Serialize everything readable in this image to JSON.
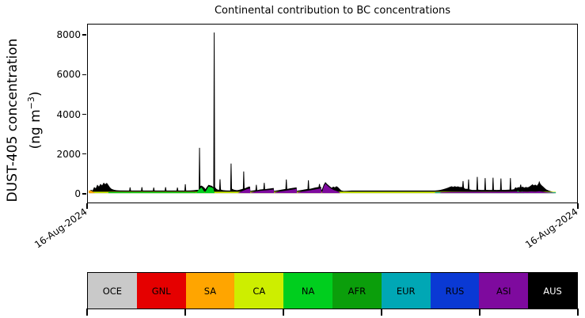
{
  "figure": {
    "title": "Continental contribution to BC concentrations"
  },
  "y_axis": {
    "label_line1": "DUST-405 concentration",
    "label_line2_pre": "(ng m",
    "label_line2_sup": "−3",
    "label_line2_post": ")",
    "tick_labels": [
      "0",
      "2000",
      "4000",
      "6000",
      "8000"
    ],
    "tick_values": [
      0,
      2000,
      4000,
      6000,
      8000
    ]
  },
  "x_axis": {
    "left_label": "16-Aug-2024",
    "right_label": "16-Aug-2024"
  },
  "legend": {
    "entries": [
      {
        "label": "OCE",
        "color": "#c9c9c9",
        "text_color": "#000000"
      },
      {
        "label": "GNL",
        "color": "#e50000",
        "text_color": "#000000"
      },
      {
        "label": "SA",
        "color": "#ffa500",
        "text_color": "#000000"
      },
      {
        "label": "CA",
        "color": "#cdee00",
        "text_color": "#000000"
      },
      {
        "label": "NA",
        "color": "#00ce1e",
        "text_color": "#000000"
      },
      {
        "label": "AFR",
        "color": "#0b9e0b",
        "text_color": "#000000"
      },
      {
        "label": "EUR",
        "color": "#00a7b5",
        "text_color": "#000000"
      },
      {
        "label": "RUS",
        "color": "#0a39d4",
        "text_color": "#000000"
      },
      {
        "label": "ASI",
        "color": "#7e0a9e",
        "text_color": "#000000"
      },
      {
        "label": "AUS",
        "color": "#000000",
        "text_color": "#ffffff"
      }
    ]
  },
  "chart_data": {
    "type": "area",
    "subtype": "stacked time-series of continental contributions",
    "title": "Continental contribution to BC concentrations",
    "xlabel": "",
    "ylabel": "DUST-405 concentration (ng m−3)",
    "ylim": [
      -480,
      8560
    ],
    "yticks": [
      0,
      2000,
      4000,
      6000,
      8000
    ],
    "xtick_labels": [
      "16-Aug-2024",
      "16-Aug-2024"
    ],
    "grid": false,
    "legend_position": "bottom horizontal colorbar with ticks every 2 categories",
    "categories": [
      "OCE",
      "GNL",
      "SA",
      "CA",
      "NA",
      "AFR",
      "EUR",
      "RUS",
      "ASI",
      "AUS"
    ],
    "category_colors": [
      "#c9c9c9",
      "#e50000",
      "#ffa500",
      "#cdee00",
      "#00ce1e",
      "#0b9e0b",
      "#00a7b5",
      "#0a39d4",
      "#7e0a9e",
      "#000000"
    ],
    "units": "ng m-3; x coordinates are axis pixels 0-620 spanning the date range; data ends at x=593 leaving blank axis to 620",
    "peak_value": 8150,
    "secondary_peaks": [
      2300,
      1500,
      1100
    ],
    "total_envelope_color": "#000000",
    "total_envelope": [
      [
        2,
        0
      ],
      [
        2,
        90
      ],
      [
        4,
        170
      ],
      [
        6,
        130
      ],
      [
        8,
        310
      ],
      [
        10,
        240
      ],
      [
        12,
        430
      ],
      [
        14,
        330
      ],
      [
        16,
        470
      ],
      [
        18,
        390
      ],
      [
        20,
        530
      ],
      [
        22,
        450
      ],
      [
        24,
        520
      ],
      [
        26,
        410
      ],
      [
        28,
        290
      ],
      [
        30,
        215
      ],
      [
        33,
        170
      ],
      [
        36,
        145
      ],
      [
        40,
        135
      ],
      [
        52.4,
        130
      ],
      [
        53,
        290
      ],
      [
        54,
        290
      ],
      [
        54.6,
        130
      ],
      [
        67.4,
        130
      ],
      [
        68,
        300
      ],
      [
        69,
        300
      ],
      [
        69.6,
        130
      ],
      [
        82.4,
        130
      ],
      [
        83,
        280
      ],
      [
        84,
        280
      ],
      [
        84.6,
        130
      ],
      [
        97.4,
        130
      ],
      [
        98,
        300
      ],
      [
        99,
        300
      ],
      [
        99.6,
        130
      ],
      [
        112.4,
        130
      ],
      [
        113,
        280
      ],
      [
        114,
        280
      ],
      [
        114.6,
        130
      ],
      [
        122.4,
        130
      ],
      [
        123,
        450
      ],
      [
        124,
        450
      ],
      [
        124.6,
        130
      ],
      [
        130,
        135
      ],
      [
        134,
        145
      ],
      [
        137,
        160
      ],
      [
        140.5,
        170
      ],
      [
        141,
        2300
      ],
      [
        142,
        2300
      ],
      [
        142.6,
        360
      ],
      [
        144,
        380
      ],
      [
        146,
        330
      ],
      [
        148,
        260
      ],
      [
        149,
        200
      ],
      [
        151,
        320
      ],
      [
        153,
        420
      ],
      [
        155,
        390
      ],
      [
        157,
        370
      ],
      [
        159,
        300
      ],
      [
        159.6,
        8150
      ],
      [
        160.6,
        8150
      ],
      [
        161.2,
        300
      ],
      [
        163,
        210
      ],
      [
        165,
        170
      ],
      [
        166.4,
        170
      ],
      [
        167,
        700
      ],
      [
        168,
        700
      ],
      [
        168.6,
        180
      ],
      [
        171,
        150
      ],
      [
        175,
        135
      ],
      [
        180.4,
        130
      ],
      [
        181,
        1500
      ],
      [
        182,
        1500
      ],
      [
        182.6,
        220
      ],
      [
        185,
        175
      ],
      [
        188,
        150
      ],
      [
        190,
        150
      ],
      [
        194,
        190
      ],
      [
        196.5,
        220
      ],
      [
        197,
        1100
      ],
      [
        198,
        1100
      ],
      [
        198.6,
        240
      ],
      [
        201,
        280
      ],
      [
        204,
        330
      ],
      [
        205.5,
        330
      ],
      [
        206,
        110
      ],
      [
        208,
        125
      ],
      [
        212.4,
        150
      ],
      [
        213,
        420
      ],
      [
        214,
        420
      ],
      [
        214.6,
        150
      ],
      [
        218,
        180
      ],
      [
        222.4,
        200
      ],
      [
        223,
        520
      ],
      [
        224,
        520
      ],
      [
        224.6,
        200
      ],
      [
        228,
        220
      ],
      [
        232,
        240
      ],
      [
        235.5,
        260
      ],
      [
        236,
        110
      ],
      [
        238,
        125
      ],
      [
        242,
        150
      ],
      [
        246,
        180
      ],
      [
        250.4,
        210
      ],
      [
        251,
        690
      ],
      [
        252,
        690
      ],
      [
        252.6,
        210
      ],
      [
        256,
        240
      ],
      [
        260,
        265
      ],
      [
        264.5,
        290
      ],
      [
        265,
        110
      ],
      [
        266,
        125
      ],
      [
        270,
        150
      ],
      [
        274,
        180
      ],
      [
        278.4,
        210
      ],
      [
        279,
        650
      ],
      [
        280,
        650
      ],
      [
        280.6,
        210
      ],
      [
        284,
        240
      ],
      [
        288,
        280
      ],
      [
        292.4,
        310
      ],
      [
        293,
        460
      ],
      [
        294,
        460
      ],
      [
        294.6,
        310
      ],
      [
        295.5,
        320
      ],
      [
        296,
        150
      ],
      [
        297,
        220
      ],
      [
        299,
        430
      ],
      [
        301,
        560
      ],
      [
        303,
        470
      ],
      [
        305,
        400
      ],
      [
        307,
        330
      ],
      [
        309,
        270
      ],
      [
        311,
        330
      ],
      [
        313,
        290
      ],
      [
        315,
        350
      ],
      [
        317,
        300
      ],
      [
        319,
        220
      ],
      [
        321,
        140
      ],
      [
        324,
        110
      ],
      [
        328,
        115
      ],
      [
        334,
        130
      ],
      [
        440,
        130
      ],
      [
        444,
        145
      ],
      [
        447,
        165
      ],
      [
        450,
        195
      ],
      [
        453,
        230
      ],
      [
        456,
        270
      ],
      [
        459,
        320
      ],
      [
        461,
        345
      ],
      [
        463,
        315
      ],
      [
        465,
        350
      ],
      [
        467,
        320
      ],
      [
        469,
        340
      ],
      [
        471,
        310
      ],
      [
        474.4,
        310
      ],
      [
        475,
        610
      ],
      [
        476,
        610
      ],
      [
        476.6,
        280
      ],
      [
        478,
        220
      ],
      [
        481.4,
        215
      ],
      [
        482,
        690
      ],
      [
        483,
        690
      ],
      [
        483.6,
        190
      ],
      [
        487,
        160
      ],
      [
        492.4,
        160
      ],
      [
        493,
        820
      ],
      [
        494,
        820
      ],
      [
        494.6,
        175
      ],
      [
        498,
        160
      ],
      [
        502.4,
        160
      ],
      [
        503,
        760
      ],
      [
        504,
        760
      ],
      [
        504.6,
        165
      ],
      [
        508,
        160
      ],
      [
        512.4,
        160
      ],
      [
        513,
        780
      ],
      [
        514,
        780
      ],
      [
        514.6,
        165
      ],
      [
        518,
        160
      ],
      [
        522.4,
        165
      ],
      [
        523,
        740
      ],
      [
        524,
        740
      ],
      [
        524.6,
        165
      ],
      [
        529,
        165
      ],
      [
        534.4,
        175
      ],
      [
        535,
        760
      ],
      [
        536,
        760
      ],
      [
        536.6,
        175
      ],
      [
        540,
        195
      ],
      [
        542,
        300
      ],
      [
        543.5,
        255
      ],
      [
        545,
        295
      ],
      [
        547.4,
        295
      ],
      [
        548,
        430
      ],
      [
        549,
        430
      ],
      [
        549.6,
        295
      ],
      [
        551,
        330
      ],
      [
        553,
        275
      ],
      [
        555,
        310
      ],
      [
        557,
        290
      ],
      [
        559,
        315
      ],
      [
        562,
        400
      ],
      [
        563.5,
        450
      ],
      [
        565,
        390
      ],
      [
        567,
        430
      ],
      [
        569,
        375
      ],
      [
        571,
        480
      ],
      [
        572,
        620
      ],
      [
        573.5,
        470
      ],
      [
        575,
        400
      ],
      [
        577,
        330
      ],
      [
        579,
        255
      ],
      [
        581,
        185
      ],
      [
        584,
        130
      ],
      [
        587,
        90
      ],
      [
        590,
        60
      ],
      [
        592,
        35
      ],
      [
        593,
        20
      ],
      [
        593,
        0
      ]
    ],
    "fills": [
      {
        "name": "CA",
        "color": "#cdee00",
        "points": [
          [
            2,
            0
          ],
          [
            2,
            70
          ],
          [
            593,
            70
          ],
          [
            593,
            0
          ]
        ]
      },
      {
        "name": "EUR",
        "color": "#00a7b5",
        "points": [
          [
            440,
            0
          ],
          [
            440,
            38
          ],
          [
            593,
            38
          ],
          [
            593,
            0
          ]
        ]
      },
      {
        "name": "NA",
        "color": "#00ce1e",
        "points": [
          [
            26,
            0
          ],
          [
            26,
            48
          ],
          [
            137,
            48
          ],
          [
            137,
            0
          ]
        ]
      },
      {
        "name": "NA",
        "color": "#00ce1e",
        "points": [
          [
            137,
            0
          ],
          [
            140,
            150
          ],
          [
            144,
            290
          ],
          [
            148.2,
            30
          ],
          [
            150,
            130
          ],
          [
            153,
            330
          ],
          [
            156,
            300
          ],
          [
            159,
            250
          ],
          [
            160.5,
            0
          ]
        ]
      },
      {
        "name": "NA",
        "color": "#00ce1e",
        "points": [
          [
            542,
            0
          ],
          [
            545,
            130
          ],
          [
            548.5,
            0
          ],
          [
            550,
            100
          ],
          [
            553,
            0
          ]
        ]
      },
      {
        "name": "SA",
        "color": "#ffa500",
        "points": [
          [
            1,
            0
          ],
          [
            1,
            140
          ],
          [
            5,
            110
          ],
          [
            9,
            0
          ]
        ]
      },
      {
        "name": "ASI",
        "color": "#7e0a9e",
        "points": [
          [
            190,
            0
          ],
          [
            196,
            110
          ],
          [
            201,
            190
          ],
          [
            205.5,
            235
          ],
          [
            205.9,
            0
          ],
          [
            207,
            30
          ],
          [
            213,
            80
          ],
          [
            219,
            120
          ],
          [
            228,
            150
          ],
          [
            235.5,
            185
          ],
          [
            235.9,
            0
          ],
          [
            237,
            30
          ],
          [
            243,
            80
          ],
          [
            250,
            120
          ],
          [
            258,
            170
          ],
          [
            264.5,
            215
          ],
          [
            264.9,
            0
          ],
          [
            266,
            30
          ],
          [
            272,
            80
          ],
          [
            280,
            130
          ],
          [
            287,
            180
          ],
          [
            295.5,
            240
          ],
          [
            295.9,
            0
          ],
          [
            297,
            60
          ],
          [
            299,
            330
          ],
          [
            301,
            480
          ],
          [
            303,
            400
          ],
          [
            306,
            290
          ],
          [
            309,
            210
          ],
          [
            312,
            150
          ],
          [
            315,
            110
          ],
          [
            318,
            60
          ],
          [
            320,
            0
          ]
        ]
      },
      {
        "name": "ASI",
        "color": "#7e0a9e",
        "points": [
          [
            446,
            0
          ],
          [
            448,
            40
          ],
          [
            460,
            55
          ],
          [
            475,
            60
          ],
          [
            490,
            65
          ],
          [
            505,
            60
          ],
          [
            520,
            65
          ],
          [
            535,
            70
          ],
          [
            543,
            80
          ],
          [
            547,
            60
          ],
          [
            552,
            75
          ],
          [
            557,
            65
          ],
          [
            562,
            85
          ],
          [
            567,
            70
          ],
          [
            572,
            95
          ],
          [
            576,
            70
          ],
          [
            580,
            45
          ],
          [
            584,
            30
          ],
          [
            588,
            18
          ],
          [
            591,
            10
          ],
          [
            591,
            0
          ]
        ]
      }
    ]
  }
}
